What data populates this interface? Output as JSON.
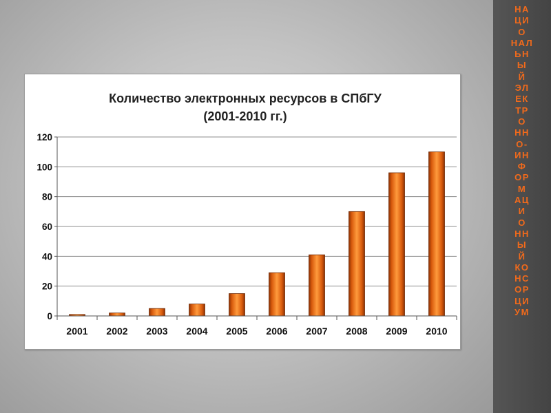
{
  "side_panel": {
    "lines": [
      "НА",
      "ЦИ",
      "О",
      "НАЛ",
      "ЬН",
      "Ы",
      "Й",
      "ЭЛ",
      "ЕК",
      "ТР",
      "О",
      "НН",
      "О-",
      "ИН",
      "Ф",
      "ОР",
      "М",
      "АЦ",
      "И",
      "О",
      "НН",
      "Ы",
      "Й",
      "КО",
      "НС",
      "ОР",
      "ЦИ",
      "УМ"
    ],
    "color": "#f26a1b"
  },
  "chart_data": {
    "type": "bar",
    "title": [
      "Количество электронных ресурсов в СПбГУ",
      "(2001-2010 гг.)"
    ],
    "categories": [
      "2001",
      "2002",
      "2003",
      "2004",
      "2005",
      "2006",
      "2007",
      "2008",
      "2009",
      "2010"
    ],
    "values": [
      1,
      2,
      5,
      8,
      15,
      29,
      41,
      70,
      96,
      110
    ],
    "ylim": [
      0,
      120
    ],
    "yticks": [
      0,
      20,
      40,
      60,
      80,
      100,
      120
    ],
    "grid": true,
    "legend": "none",
    "bar_color": "#f07a1c",
    "xlabel": "",
    "ylabel": ""
  }
}
